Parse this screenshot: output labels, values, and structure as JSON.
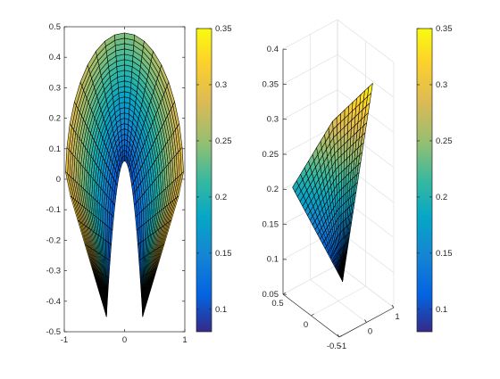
{
  "figure": {
    "background": "#ffffff",
    "colormap": "parula"
  },
  "chart_data": [
    {
      "type": "surface",
      "view": "2d-top",
      "title": "",
      "xlabel": "",
      "ylabel": "",
      "xlim": [
        -1,
        1
      ],
      "ylim": [
        -0.5,
        0.5
      ],
      "grid": false,
      "xtick_labels": [
        "-1",
        "0",
        "1"
      ],
      "ytick_labels": [
        "0.5",
        "0.4",
        "0.3",
        "0.2",
        "0.1",
        "0",
        "-0.1",
        "-0.2",
        "-0.3",
        "-0.4",
        "-0.5"
      ],
      "surface": {
        "description_of_shape": "diamond-like boundary with inner parabolic cutout; colored by height",
        "outer_vertices_xy": [
          [
            -0.98,
            0.0
          ],
          [
            0.0,
            0.48
          ],
          [
            0.98,
            0.0
          ],
          [
            0.3,
            -0.45
          ],
          [
            0.0,
            0.06
          ],
          [
            -0.3,
            -0.45
          ]
        ],
        "z_range": [
          0.08,
          0.35
        ],
        "mesh_rows": 24,
        "mesh_cols": 30
      },
      "colorbar": {
        "range": [
          0.08,
          0.35
        ],
        "tick_labels": [
          "0.35",
          "0.3",
          "0.25",
          "0.2",
          "0.15",
          "0.1"
        ],
        "tick_values": [
          0.35,
          0.3,
          0.25,
          0.2,
          0.15,
          0.1
        ]
      }
    },
    {
      "type": "surface",
      "view": "3d",
      "title": "",
      "xlabel": "",
      "ylabel": "",
      "zlabel": "",
      "xlim": [
        -1,
        1
      ],
      "ylim": [
        -0.5,
        0.5
      ],
      "zlim": [
        0.05,
        0.4
      ],
      "grid": true,
      "xtick_labels": [
        "-1",
        "0",
        "1"
      ],
      "ytick_labels": [
        "-0.5",
        "0",
        "0.5"
      ],
      "ztick_labels": [
        "0.4",
        "0.35",
        "0.3",
        "0.25",
        "0.2",
        "0.15",
        "0.1",
        "0.05"
      ],
      "surface": {
        "z_range": [
          0.08,
          0.35
        ],
        "mesh_rows": 20,
        "mesh_cols": 20
      },
      "colorbar": {
        "range": [
          0.08,
          0.35
        ],
        "tick_labels": [
          "0.35",
          "0.3",
          "0.25",
          "0.2",
          "0.15",
          "0.1"
        ],
        "tick_values": [
          0.35,
          0.3,
          0.25,
          0.2,
          0.15,
          0.1
        ]
      }
    }
  ]
}
